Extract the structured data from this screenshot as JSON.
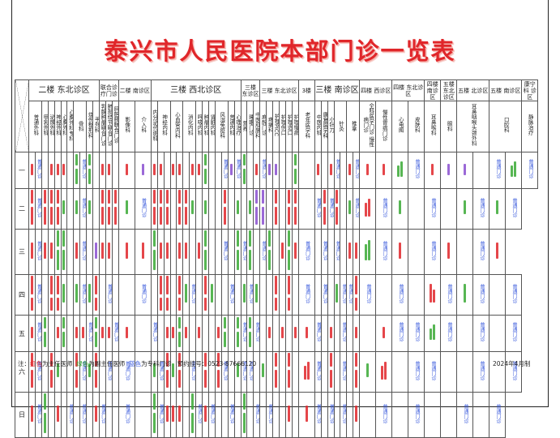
{
  "title": "泰兴市人民医院本部门诊一览表",
  "groups": [
    {
      "label": "二楼 东北诊区",
      "span": 11,
      "big": true
    },
    {
      "label": "联合诊疗门诊",
      "span": 3
    },
    {
      "label": "二楼 南诊区",
      "span": 2
    },
    {
      "label": "三楼 西北诊区",
      "span": 14,
      "big": true
    },
    {
      "label": "三楼 东诊区",
      "span": 3
    },
    {
      "label": "三楼 东北诊区",
      "span": 6
    },
    {
      "label": "3楼",
      "span": 1
    },
    {
      "label": "三楼 南诊区",
      "span": 7,
      "big": true
    },
    {
      "label": "四楼 西诊区",
      "span": 2
    },
    {
      "label": "四楼 东北诊区",
      "span": 2
    },
    {
      "label": "四楼 南诊区",
      "span": 1
    },
    {
      "label": "五楼 东北诊区",
      "span": 1
    },
    {
      "label": "五楼 北诊区",
      "span": 2
    },
    {
      "label": "五楼 南诊区",
      "span": 2
    },
    {
      "label": "康宁科 诊区",
      "span": 1
    }
  ],
  "departments": [
    {
      "label": "普通外科",
      "span": 2
    },
    {
      "label": "甲乳外科",
      "span": 1
    },
    {
      "label": "泌尿外科",
      "span": 1
    },
    {
      "label": "神经外科",
      "span": 1
    },
    {
      "label": "心胸外科",
      "span": 1
    },
    {
      "label": "心胸外科专科",
      "span": 1
    },
    {
      "label": "骨科",
      "span": 2
    },
    {
      "label": "烧伤整形科",
      "span": 1
    },
    {
      "label": "手外科",
      "span": 1
    },
    {
      "label": "乳腺肿瘤联合门诊",
      "span": 1
    },
    {
      "label": "肺部结节联合门诊",
      "span": 1
    },
    {
      "label": "肝胆胰联合门诊",
      "span": 1
    },
    {
      "label": "影像科",
      "span": 1
    },
    {
      "label": "介入科",
      "span": 1
    },
    {
      "label": "内分泌代谢科",
      "span": 1
    },
    {
      "label": "神经内科",
      "span": 2
    },
    {
      "label": "心血管内科",
      "span": 2
    },
    {
      "label": "消化内科",
      "span": 2
    },
    {
      "label": "呼吸内科",
      "span": 1
    },
    {
      "label": "肿瘤内科",
      "span": 1
    },
    {
      "label": "肾脏内科",
      "span": 1
    },
    {
      "label": "风湿免疫科",
      "span": 2
    },
    {
      "label": "普通内科",
      "span": 1
    },
    {
      "label": "心理治疗",
      "span": 1
    },
    {
      "label": "营养",
      "span": 1
    },
    {
      "label": "睡眠门诊",
      "span": 1
    },
    {
      "label": "中医肛肠科",
      "span": 1
    },
    {
      "label": "麻醉门诊",
      "span": 1
    },
    {
      "label": "疼痛科",
      "span": 1
    },
    {
      "label": "护理PICC",
      "span": 1
    },
    {
      "label": "护理伤口",
      "span": 1
    },
    {
      "label": "护理造口",
      "span": 1
    },
    {
      "label": "护理慢病",
      "span": 1
    },
    {
      "label": "老年医学科",
      "span": 1
    },
    {
      "label": "中医内科",
      "span": 1
    },
    {
      "label": "康复医学科",
      "span": 1
    },
    {
      "label": "小针刀",
      "span": 1
    },
    {
      "label": "针灸",
      "span": 2
    },
    {
      "label": "推拿",
      "span": 2
    },
    {
      "label": "全科医学门诊 慢性病门诊",
      "span": 1
    },
    {
      "label": "慢性胃病门诊",
      "span": 1
    },
    {
      "label": "心电图",
      "span": 1
    },
    {
      "label": "皮肤科",
      "span": 1
    },
    {
      "label": "耳鼻喉科",
      "span": 1
    },
    {
      "label": "眼科",
      "span": 1
    },
    {
      "label": "耳鼻咽喉头颈外科",
      "span": 2
    },
    {
      "label": "口腔科",
      "span": 2
    },
    {
      "label": "静脉治疗",
      "span": 1
    }
  ],
  "general_clinic": "普通门诊",
  "colors": {
    "r": "#e0262a",
    "g": "#3aa935",
    "p": "#8a4fd0",
    "b": "#3b5bdc"
  },
  "rows": [
    {
      "day": "一",
      "cells": "rb.rrr.gbg.rr.rprr.rr.rrg..bpbg.rbpp..g.r.rb.rbrrgbrpp.bgb"
    },
    {
      "day": "二",
      "cells": "rbrrrg.gbg.rrrgbrrr.rrg.g..r.g.gpp.r.rr.brbr.gbrbg.b.gbgb"
    },
    {
      "day": "三",
      "cells": "rbrrgg.rb.prr.rrgrr.rr.rg..b.gbg.bg.rgrb.b.b.rrgbr.br.br"
    },
    {
      "day": "四",
      "cells": "rb.rrg.gbgr.b..b.rr.rgb.rg..b.gbg..r.r.b.b.gbbrb.b.rbgb.b"
    },
    {
      "day": "五",
      "cells": "rbg.rg.rrbgrrbr.b.rrgr.r..rg.gbgb.r.r.rrb.r.b.r.rbbgb.b.b"
    },
    {
      "day": "六",
      "cells": "rb.rg..rbgr.b.b.gbrgr.b.r.rb.gbb.g.r.r.rb.r.b.rgr.bb..b.b"
    },
    {
      "day": "日",
      "cells": "rbg.r.b.b.rb..b.gbrrr.gbrb..b.g.b.b..r.rb.b.b.r.b.b..b.b"
    }
  ],
  "footer": {
    "prefix": "注：",
    "red_word": "红色",
    "red_desc": "为主任医师",
    "green_word": "绿色",
    "green_desc": "为副主任医师",
    "blue_word": "蓝色",
    "blue_desc": "为专科门诊",
    "phone": "预约挂号：0523-87666120",
    "date": "2024年4月制"
  }
}
